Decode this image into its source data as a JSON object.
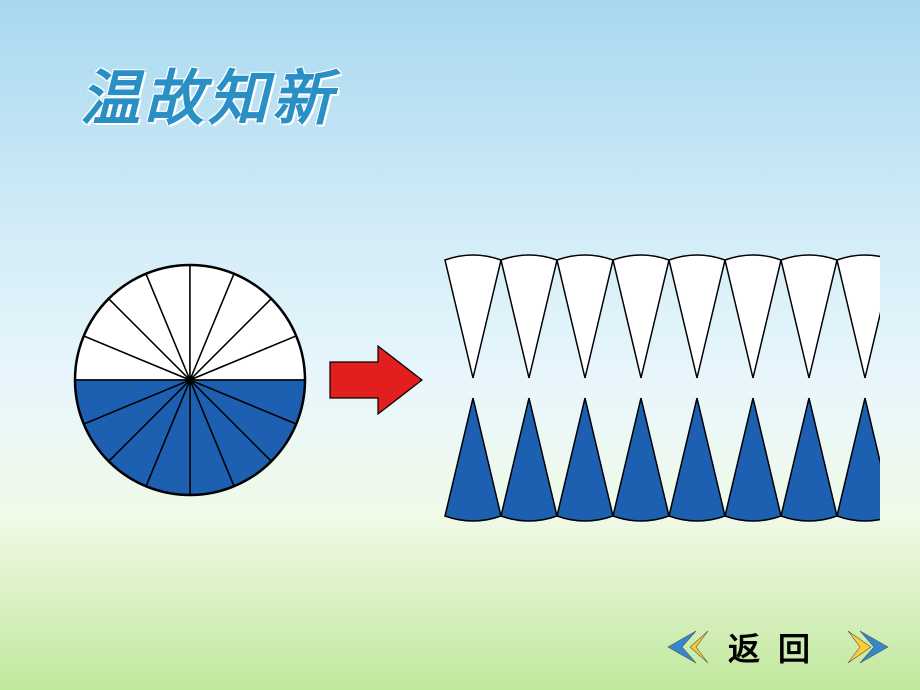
{
  "title": "温故知新",
  "nav": {
    "back_label": "返回"
  },
  "diagram": {
    "circle": {
      "radius": 115,
      "sectors": 16,
      "top_fill": "#ffffff",
      "bottom_fill": "#1d5fb0",
      "stroke": "#000000",
      "stroke_width": 1.5
    },
    "arrow": {
      "fill": "#e21e1e",
      "stroke": "#000000"
    },
    "cones": {
      "count_per_row": 8,
      "top_row_fill": "#ffffff",
      "bottom_row_fill": "#1d5fb0",
      "stroke": "#000000",
      "stroke_width": 1.5,
      "cone_width": 56,
      "cone_height": 118,
      "row_gap": 20
    },
    "nav_arrow": {
      "next_fill_left": "#ffcc33",
      "next_fill_right": "#3388cc",
      "prev_fill_left": "#3388cc",
      "prev_fill_right": "#ffcc33"
    }
  }
}
